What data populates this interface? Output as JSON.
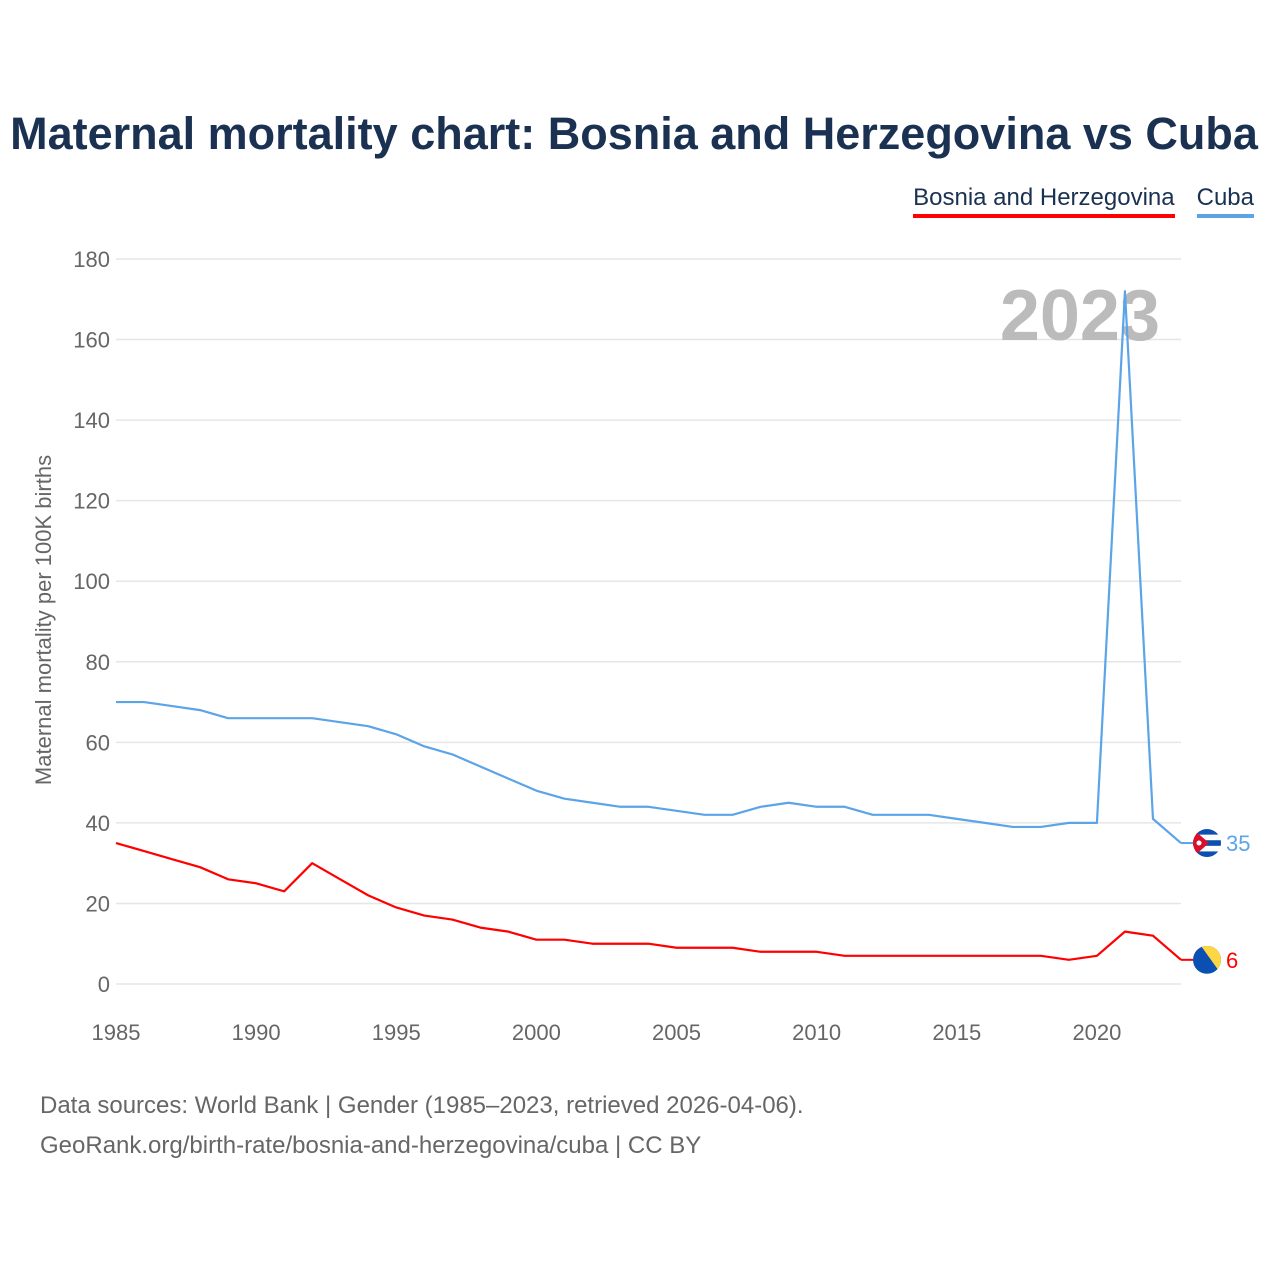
{
  "chart_data": {
    "type": "line",
    "title": "Maternal mortality chart: Bosnia and Herzegovina vs Cuba",
    "ylabel": "Maternal mortality per 100K births",
    "xlabel": "",
    "ylim": [
      0,
      180
    ],
    "xlim": [
      1985,
      2023
    ],
    "yticks": [
      "0",
      "20",
      "40",
      "60",
      "80",
      "100",
      "120",
      "140",
      "160",
      "180"
    ],
    "xticks": [
      "1985",
      "1990",
      "1995",
      "2000",
      "2005",
      "2010",
      "2015",
      "2020"
    ],
    "year_label": "2023",
    "legend_position": "top-right",
    "x": [
      1985,
      1986,
      1987,
      1988,
      1989,
      1990,
      1991,
      1992,
      1993,
      1994,
      1995,
      1996,
      1997,
      1998,
      1999,
      2000,
      2001,
      2002,
      2003,
      2004,
      2005,
      2006,
      2007,
      2008,
      2009,
      2010,
      2011,
      2012,
      2013,
      2014,
      2015,
      2016,
      2017,
      2018,
      2019,
      2020,
      2021,
      2022,
      2023
    ],
    "series": [
      {
        "name": "Bosnia and Herzegovina",
        "color": "#ff0000",
        "end_label": "6",
        "values": [
          35,
          33,
          31,
          29,
          26,
          25,
          23,
          30,
          26,
          22,
          19,
          17,
          16,
          14,
          13,
          11,
          11,
          10,
          10,
          10,
          9,
          9,
          9,
          8,
          8,
          8,
          7,
          7,
          7,
          7,
          7,
          7,
          7,
          7,
          6,
          7,
          13,
          12,
          6
        ]
      },
      {
        "name": "Cuba",
        "color": "#5ba4e8",
        "end_label": "35",
        "values": [
          70,
          70,
          69,
          68,
          66,
          66,
          66,
          66,
          65,
          64,
          62,
          59,
          57,
          54,
          51,
          48,
          46,
          45,
          44,
          44,
          43,
          42,
          42,
          44,
          45,
          44,
          44,
          42,
          42,
          42,
          41,
          40,
          39,
          39,
          40,
          40,
          172,
          41,
          35
        ]
      }
    ]
  },
  "footer": {
    "line1": "Data sources: World Bank | Gender (1985–2023, retrieved 2026-04-06).",
    "line2": "GeoRank.org/birth-rate/bosnia-and-herzegovina/cuba | CC BY"
  }
}
